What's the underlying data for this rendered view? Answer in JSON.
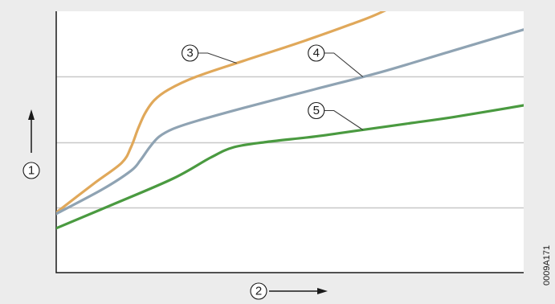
{
  "chart_data": {
    "type": "line",
    "title": "",
    "xlabel": "2",
    "ylabel": "1",
    "xlim": [
      0,
      100
    ],
    "ylim": [
      0,
      100
    ],
    "x_ticks_labeled": false,
    "y_ticks_labeled": false,
    "grid": "horizontal",
    "legend": "callouts",
    "reference_code": "0009A171",
    "series": [
      {
        "name": "3",
        "color": "#e0a85a",
        "callout": [
          30,
          84
        ],
        "x": [
          0,
          8,
          14,
          16,
          17.5,
          19,
          21,
          24,
          30,
          40,
          52,
          63,
          70,
          80
        ],
        "y": [
          23,
          34,
          42,
          48,
          55,
          61,
          66,
          70,
          75,
          81,
          88,
          95,
          100,
          110
        ]
      },
      {
        "name": "4",
        "color": "#8fa3b3",
        "callout": [
          57,
          84
        ],
        "x": [
          0,
          10,
          16,
          18,
          20,
          22,
          25,
          30,
          40,
          55,
          70,
          85,
          100
        ],
        "y": [
          22.5,
          32,
          39,
          43,
          48,
          52,
          55,
          58,
          63,
          70,
          77,
          85,
          93
        ]
      },
      {
        "name": "5",
        "color": "#4a9a40",
        "callout": [
          57,
          62
        ],
        "x": [
          0,
          12,
          25,
          33,
          38,
          45,
          55,
          65,
          75,
          85,
          100
        ],
        "y": [
          17,
          26,
          36,
          44,
          48,
          50,
          52,
          54.5,
          57,
          59.5,
          64
        ]
      }
    ]
  }
}
